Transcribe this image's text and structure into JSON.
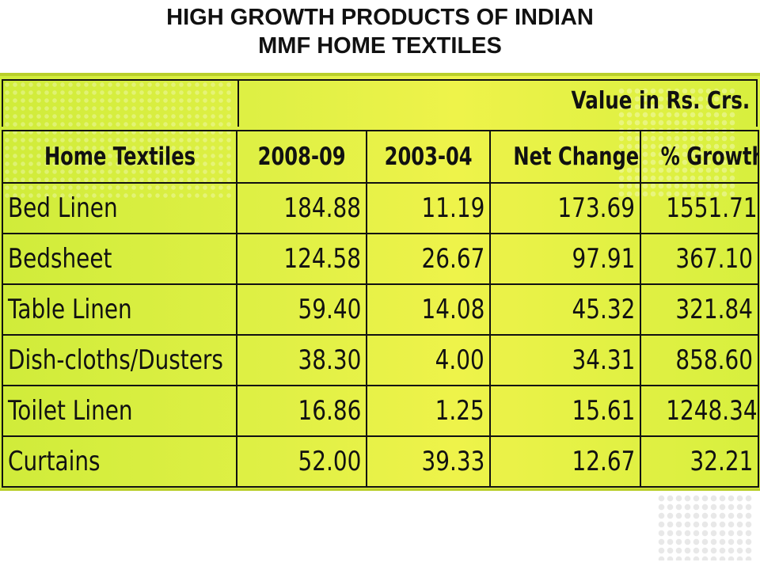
{
  "title": {
    "line1": "HIGH GROWTH PRODUCTS OF INDIAN",
    "line2": "MMF HOME TEXTILES"
  },
  "unit_note": "Value in Rs. Crs.",
  "table": {
    "headers": [
      "Home Textiles",
      "2008-09",
      "2003-04",
      "Net Change",
      "% Growth"
    ],
    "rows": [
      [
        "Bed Linen",
        "184.88",
        "11.19",
        "173.69",
        "1551.71"
      ],
      [
        "Bedsheet",
        "124.58",
        "26.67",
        "97.91",
        "367.10"
      ],
      [
        "Table Linen",
        "59.40",
        "14.08",
        "45.32",
        "321.84"
      ],
      [
        "Dish-cloths/Dusters",
        "38.30",
        "4.00",
        "34.31",
        "858.60"
      ],
      [
        "Toilet Linen",
        "16.86",
        "1.25",
        "15.61",
        "1248.34"
      ],
      [
        "Curtains",
        "52.00",
        "39.33",
        "12.67",
        "32.21"
      ]
    ]
  },
  "colors": {
    "panel": "#dff045",
    "text": "#111111"
  }
}
